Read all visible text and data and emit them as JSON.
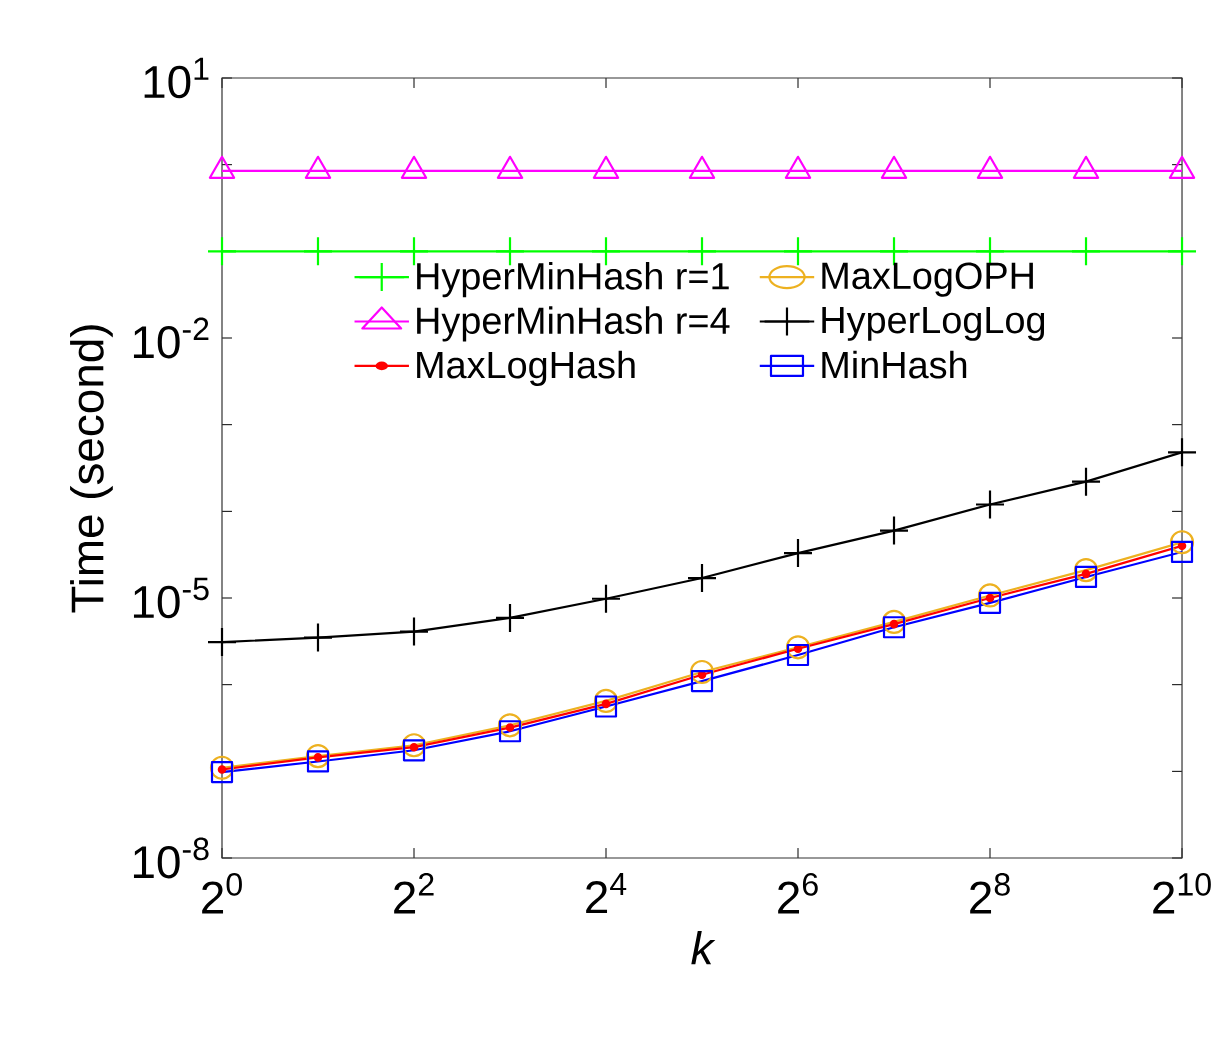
{
  "chart_data": {
    "type": "line",
    "xlabel": "k",
    "ylabel": "Time (second)",
    "log": "xy",
    "grid": false,
    "legend": "top",
    "x": [
      1,
      2,
      4,
      8,
      16,
      32,
      64,
      128,
      256,
      512,
      1024
    ],
    "xlim": [
      1,
      1024
    ],
    "xticks": [
      {
        "value": 1,
        "label": "2$^{0}$"
      },
      {
        "value": 4,
        "label": "2$^{2}$"
      },
      {
        "value": 16,
        "label": "2$^{4}$"
      },
      {
        "value": 64,
        "label": "2$^{6}$"
      },
      {
        "value": 256,
        "label": "2$^{8}$"
      },
      {
        "value": 1024,
        "label": "2$^{10}$"
      }
    ],
    "ylim": [
      1e-08,
      10
    ],
    "yticks": [
      {
        "value": 1e-08,
        "label": "10$^{-8}$"
      },
      {
        "value": 1e-07,
        "label": null
      },
      {
        "value": 1e-06,
        "label": null
      },
      {
        "value": 1e-05,
        "label": "10$^{-5}$"
      },
      {
        "value": 0.0001,
        "label": null
      },
      {
        "value": 0.001,
        "label": null
      },
      {
        "value": 0.01,
        "label": "10$^{-2}$"
      },
      {
        "value": 0.1,
        "label": null
      },
      {
        "value": 1,
        "label": null
      },
      {
        "value": 10,
        "label": "10$^{1}$"
      }
    ],
    "series": [
      {
        "name": "HyperMinHash r=1",
        "color": "#00ff00",
        "marker": "cross",
        "values": [
          0.1,
          0.1,
          0.1,
          0.1,
          0.1,
          0.1,
          0.1,
          0.1,
          0.1,
          0.1,
          0.1
        ]
      },
      {
        "name": "MaxLogOPH",
        "color": "#edb120",
        "marker": "circle",
        "values": [
          1.1e-07,
          1.5e-07,
          2e-07,
          3.4e-07,
          6.5e-07,
          1.4e-06,
          2.7e-06,
          5.3e-06,
          1.07e-05,
          2.1e-05,
          4.4e-05
        ]
      },
      {
        "name": "HyperMinHash r=4",
        "color": "#ff00ff",
        "marker": "triangle",
        "values": [
          0.85,
          0.85,
          0.85,
          0.85,
          0.85,
          0.85,
          0.85,
          0.85,
          0.85,
          0.85,
          0.85
        ]
      },
      {
        "name": "HyperLogLog",
        "color": "#000000",
        "marker": "cross",
        "values": [
          3.1e-06,
          3.5e-06,
          4.1e-06,
          5.9e-06,
          9.8e-06,
          1.7e-05,
          3.3e-05,
          6e-05,
          0.00012,
          0.00022,
          0.00048
        ]
      },
      {
        "name": "MaxLogHash",
        "color": "#ff0000",
        "marker": "point",
        "values": [
          1.05e-07,
          1.45e-07,
          1.9e-07,
          3.2e-07,
          6e-07,
          1.3e-06,
          2.6e-06,
          5e-06,
          1e-05,
          1.9e-05,
          4e-05
        ]
      },
      {
        "name": "MinHash",
        "color": "#0000ff",
        "marker": "square",
        "values": [
          9.8e-08,
          1.3e-07,
          1.75e-07,
          2.9e-07,
          5.6e-07,
          1.1e-06,
          2.2e-06,
          4.6e-06,
          8.8e-06,
          1.75e-05,
          3.4e-05
        ]
      }
    ]
  }
}
